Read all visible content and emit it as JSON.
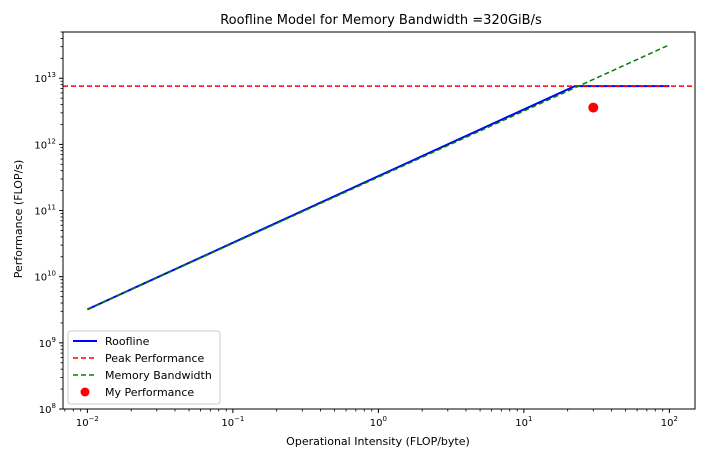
{
  "chart_data": {
    "type": "line",
    "title": "Roofline Model for Memory Bandwidth =320GiB/s",
    "xlabel": "Operational Intensity (FLOP/byte)",
    "ylabel": "Performance (FLOP/s)",
    "xscale": "log",
    "yscale": "log",
    "xlim": [
      0.0068,
      150
    ],
    "ylim": [
      100000000.0,
      50000000000000.0
    ],
    "xticks": [
      {
        "value": 0.01,
        "base": "10",
        "exp": "−2"
      },
      {
        "value": 0.1,
        "base": "10",
        "exp": "−1"
      },
      {
        "value": 1,
        "base": "10",
        "exp": "0"
      },
      {
        "value": 10,
        "base": "10",
        "exp": "1"
      },
      {
        "value": 100,
        "base": "10",
        "exp": "2"
      }
    ],
    "yticks": [
      {
        "value": 100000000.0,
        "base": "10",
        "exp": "8"
      },
      {
        "value": 1000000000.0,
        "base": "10",
        "exp": "9"
      },
      {
        "value": 10000000000.0,
        "base": "10",
        "exp": "10"
      },
      {
        "value": 100000000000.0,
        "base": "10",
        "exp": "11"
      },
      {
        "value": 1000000000000.0,
        "base": "10",
        "exp": "12"
      },
      {
        "value": 10000000000000.0,
        "base": "10",
        "exp": "13"
      }
    ],
    "grid": false,
    "legend_position": "lower-left",
    "series": [
      {
        "name": "Roofline",
        "kind": "line",
        "style": "solid",
        "color": "#0000ff",
        "x": [
          0.01,
          22.4,
          100
        ],
        "y": [
          3200000000.0,
          7600000000000.0,
          7600000000000.0
        ]
      },
      {
        "name": "Peak Performance",
        "kind": "hline",
        "style": "dashed",
        "color": "#ff0000",
        "y": 7600000000000.0
      },
      {
        "name": "Memory Bandwidth",
        "kind": "line",
        "style": "dashed",
        "color": "#008000",
        "x": [
          0.01,
          100
        ],
        "y": [
          3200000000.0,
          32000000000000.0
        ]
      },
      {
        "name": "My Performance",
        "kind": "scatter",
        "color": "#ff0000",
        "x": [
          30
        ],
        "y": [
          3600000000000.0
        ]
      }
    ]
  }
}
